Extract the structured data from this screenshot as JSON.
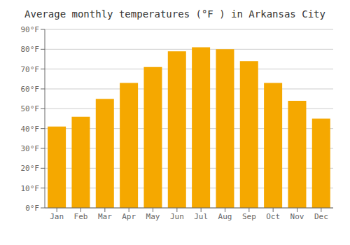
{
  "chart_data": {
    "type": "bar",
    "title": "Average monthly temperatures (°F ) in Arkansas City",
    "categories": [
      "Jan",
      "Feb",
      "Mar",
      "Apr",
      "May",
      "Jun",
      "Jul",
      "Aug",
      "Sep",
      "Oct",
      "Nov",
      "Dec"
    ],
    "values": [
      41,
      46,
      55,
      63,
      71,
      79,
      81,
      80,
      74,
      63,
      54,
      45
    ],
    "color": "#F5A800",
    "ylim": [
      0,
      90
    ],
    "yticks": [
      {
        "value": 0,
        "label": "0°F"
      },
      {
        "value": 10,
        "label": "10°F"
      },
      {
        "value": 20,
        "label": "20°F"
      },
      {
        "value": 30,
        "label": "30°F"
      },
      {
        "value": 40,
        "label": "40°F"
      },
      {
        "value": 50,
        "label": "50°F"
      },
      {
        "value": 60,
        "label": "60°F"
      },
      {
        "value": 70,
        "label": "70°F"
      },
      {
        "value": 80,
        "label": "80°F"
      },
      {
        "value": 90,
        "label": "90°F"
      }
    ],
    "grid": true
  }
}
